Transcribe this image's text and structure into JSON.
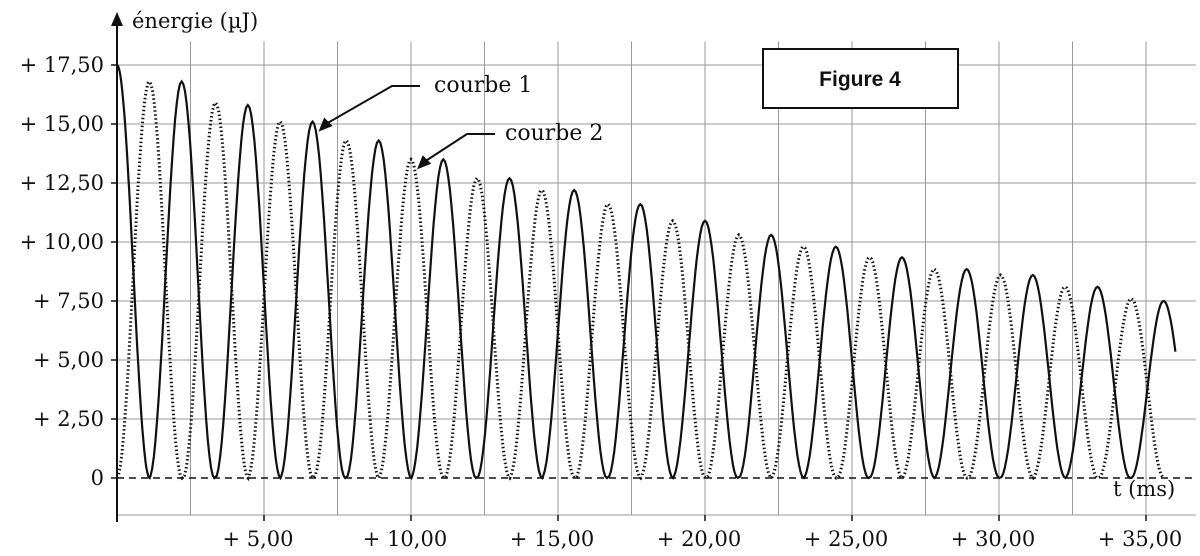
{
  "chart_data": {
    "type": "line",
    "title": "Figure 4",
    "xlabel": "t (ms)",
    "ylabel": "énergie (µJ)",
    "xlim": [
      0,
      36
    ],
    "ylim": [
      0,
      18.5
    ],
    "grid": true,
    "x_ticks": [
      5,
      10,
      15,
      20,
      25,
      30,
      35
    ],
    "x_tick_labels": [
      "+ 5,00",
      "+ 10,00",
      "+ 15,00",
      "+ 20,00",
      "+ 25,00",
      "+ 30,00",
      "+ 35,00"
    ],
    "y_ticks": [
      0,
      2.5,
      5,
      7.5,
      10,
      12.5,
      15,
      17.5
    ],
    "y_tick_labels": [
      "0",
      "+ 2,50",
      "+ 5,00",
      "+ 7,50",
      "+ 10,00",
      "+ 12,50",
      "+ 15,00",
      "+ 17,50"
    ],
    "series": [
      {
        "name": "courbe 1",
        "style": "solid",
        "peaks": [
          {
            "t": 0.0,
            "e": 17.5
          },
          {
            "t": 2.2,
            "e": 16.8
          },
          {
            "t": 4.45,
            "e": 15.8
          },
          {
            "t": 6.65,
            "e": 15.1
          },
          {
            "t": 8.9,
            "e": 14.3
          },
          {
            "t": 11.1,
            "e": 13.5
          },
          {
            "t": 13.35,
            "e": 12.7
          },
          {
            "t": 15.55,
            "e": 12.2
          },
          {
            "t": 17.8,
            "e": 11.6
          },
          {
            "t": 20.0,
            "e": 10.9
          },
          {
            "t": 22.25,
            "e": 10.3
          },
          {
            "t": 24.45,
            "e": 9.8
          },
          {
            "t": 26.7,
            "e": 9.35
          },
          {
            "t": 28.9,
            "e": 8.85
          },
          {
            "t": 31.15,
            "e": 8.6
          },
          {
            "t": 33.35,
            "e": 8.1
          },
          {
            "t": 35.6,
            "e": 7.5
          }
        ]
      },
      {
        "name": "courbe 2",
        "style": "dotted",
        "peaks": [
          {
            "t": 1.1,
            "e": 16.8
          },
          {
            "t": 3.35,
            "e": 15.9
          },
          {
            "t": 5.55,
            "e": 15.1
          },
          {
            "t": 7.8,
            "e": 14.3
          },
          {
            "t": 10.0,
            "e": 13.5
          },
          {
            "t": 12.25,
            "e": 12.7
          },
          {
            "t": 14.45,
            "e": 12.2
          },
          {
            "t": 16.7,
            "e": 11.6
          },
          {
            "t": 18.9,
            "e": 10.9
          },
          {
            "t": 21.15,
            "e": 10.3
          },
          {
            "t": 23.35,
            "e": 9.8
          },
          {
            "t": 25.6,
            "e": 9.35
          },
          {
            "t": 27.8,
            "e": 8.85
          },
          {
            "t": 30.05,
            "e": 8.6
          },
          {
            "t": 32.25,
            "e": 8.1
          },
          {
            "t": 34.5,
            "e": 7.6
          }
        ]
      }
    ],
    "annotations": [
      {
        "text": "courbe 1",
        "target_series": "courbe 1",
        "t": 6.65
      },
      {
        "text": "courbe 2",
        "target_series": "courbe 2",
        "t": 10.0
      }
    ]
  }
}
